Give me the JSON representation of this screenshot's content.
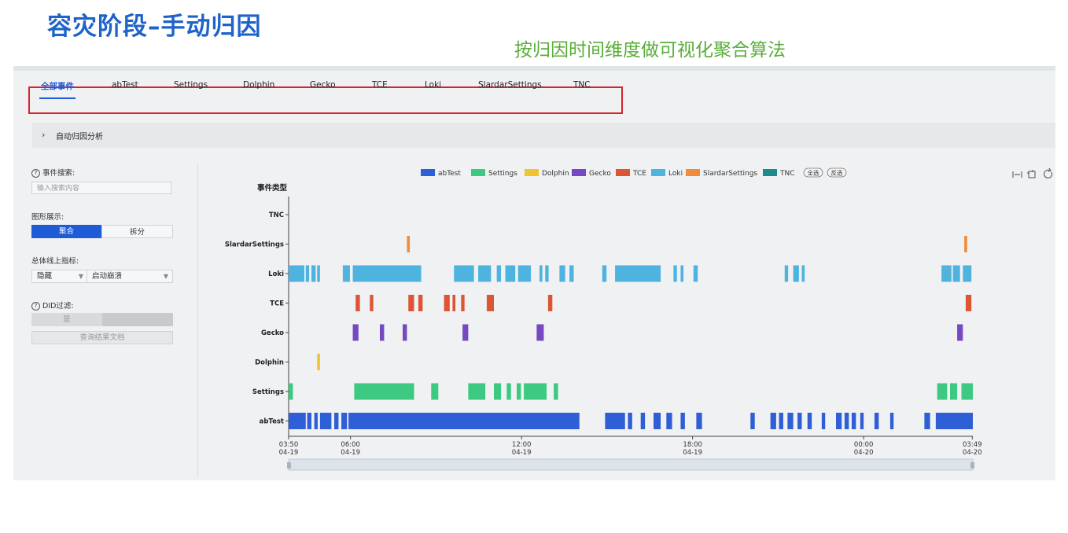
{
  "slide": {
    "title": "容灾阶段–手动归因",
    "note": "按归因时间维度做可视化聚合算法"
  },
  "tabs": [
    "全部事件",
    "abTest",
    "Settings",
    "Dolphin",
    "Gecko",
    "TCE",
    "Loki",
    "SlardarSettings",
    "TNC"
  ],
  "collapse": {
    "label": "自动归因分析"
  },
  "sidebar": {
    "search_label": "事件搜索:",
    "search_placeholder": "输入搜索内容",
    "display_label": "图形展示:",
    "display_options": [
      "聚合",
      "拆分"
    ],
    "metric_label": "总体线上指标:",
    "metric_select1": "隐藏",
    "metric_select2": "启动崩溃",
    "did_label": "DID过滤:",
    "did_options": [
      "是",
      "否"
    ],
    "query_button": "查询结果文档"
  },
  "colors": {
    "abTest": "#2f5fd6",
    "Settings": "#3ec982",
    "Dolphin": "#f0c330",
    "Gecko": "#7649c2",
    "TCE": "#dc5535",
    "Loki": "#4fb3df",
    "SlardarSettings": "#f08a3c",
    "TNC": "#1c8b8b"
  },
  "chart_data": {
    "type": "timeline",
    "legend": [
      "abTest",
      "Settings",
      "Dolphin",
      "Gecko",
      "TCE",
      "Loki",
      "SlardarSettings",
      "TNC"
    ],
    "legend_buttons": [
      "全选",
      "反选"
    ],
    "y_title": "事件类型",
    "categories": [
      "TNC",
      "SlardarSettings",
      "Loki",
      "TCE",
      "Gecko",
      "Dolphin",
      "Settings",
      "abTest"
    ],
    "x_ticks": [
      {
        "time": "03:50",
        "date": "04-19",
        "h": 0
      },
      {
        "time": "06:00",
        "date": "04-19",
        "h": 2.17
      },
      {
        "time": "12:00",
        "date": "04-19",
        "h": 8.17
      },
      {
        "time": "18:00",
        "date": "04-19",
        "h": 14.17
      },
      {
        "time": "00:00",
        "date": "04-20",
        "h": 20.17
      },
      {
        "time": "03:49",
        "date": "04-20",
        "h": 23.98
      }
    ],
    "x_range_hours": [
      0,
      24
    ],
    "events": {
      "TNC": [],
      "SlardarSettings": [
        [
          4.15,
          0.1
        ],
        [
          23.7,
          0.1
        ]
      ],
      "Loki": [
        [
          0,
          0.55
        ],
        [
          0.6,
          0.12
        ],
        [
          0.8,
          0.15
        ],
        [
          1.0,
          0.1
        ],
        [
          1.9,
          0.25
        ],
        [
          2.25,
          2.4
        ],
        [
          5.8,
          0.7
        ],
        [
          6.65,
          0.45
        ],
        [
          7.3,
          0.15
        ],
        [
          7.6,
          0.35
        ],
        [
          8.05,
          0.45
        ],
        [
          8.8,
          0.1
        ],
        [
          9.0,
          0.12
        ],
        [
          9.5,
          0.2
        ],
        [
          9.85,
          0.15
        ],
        [
          11.0,
          0.15
        ],
        [
          11.45,
          1.6
        ],
        [
          13.5,
          0.12
        ],
        [
          13.75,
          0.1
        ],
        [
          14.2,
          0.15
        ],
        [
          17.4,
          0.12
        ],
        [
          17.7,
          0.2
        ],
        [
          18.0,
          0.1
        ],
        [
          22.9,
          0.35
        ],
        [
          23.3,
          0.25
        ],
        [
          23.65,
          0.3
        ]
      ],
      "TCE": [
        [
          2.35,
          0.15
        ],
        [
          2.85,
          0.12
        ],
        [
          4.2,
          0.2
        ],
        [
          4.55,
          0.15
        ],
        [
          5.45,
          0.2
        ],
        [
          5.75,
          0.1
        ],
        [
          6.05,
          0.12
        ],
        [
          6.95,
          0.25
        ],
        [
          9.1,
          0.15
        ],
        [
          23.75,
          0.2
        ]
      ],
      "Gecko": [
        [
          2.25,
          0.2
        ],
        [
          3.2,
          0.15
        ],
        [
          4.0,
          0.15
        ],
        [
          6.1,
          0.2
        ],
        [
          8.7,
          0.25
        ],
        [
          23.45,
          0.2
        ]
      ],
      "Dolphin": [
        [
          1.0,
          0.1
        ]
      ],
      "Settings": [
        [
          0,
          0.15
        ],
        [
          2.3,
          2.1
        ],
        [
          5.0,
          0.25
        ],
        [
          6.3,
          0.6
        ],
        [
          7.2,
          0.25
        ],
        [
          7.65,
          0.15
        ],
        [
          8.0,
          0.15
        ],
        [
          8.25,
          0.8
        ],
        [
          9.3,
          0.15
        ],
        [
          22.75,
          0.35
        ],
        [
          23.2,
          0.25
        ],
        [
          23.6,
          0.4
        ]
      ],
      "abTest": [
        [
          0,
          0.6
        ],
        [
          0.65,
          0.15
        ],
        [
          0.9,
          0.12
        ],
        [
          1.1,
          0.4
        ],
        [
          1.6,
          0.15
        ],
        [
          1.85,
          0.2
        ],
        [
          2.1,
          8.1
        ],
        [
          11.1,
          0.7
        ],
        [
          11.9,
          0.15
        ],
        [
          12.35,
          0.15
        ],
        [
          12.8,
          0.25
        ],
        [
          13.25,
          0.2
        ],
        [
          13.75,
          0.15
        ],
        [
          14.3,
          0.2
        ],
        [
          16.2,
          0.15
        ],
        [
          16.9,
          0.2
        ],
        [
          17.2,
          0.15
        ],
        [
          17.5,
          0.2
        ],
        [
          17.85,
          0.15
        ],
        [
          18.2,
          0.15
        ],
        [
          18.7,
          0.12
        ],
        [
          19.2,
          0.2
        ],
        [
          19.5,
          0.15
        ],
        [
          19.75,
          0.15
        ],
        [
          20.05,
          0.12
        ],
        [
          20.55,
          0.15
        ],
        [
          21.1,
          0.12
        ],
        [
          22.3,
          0.2
        ],
        [
          22.7,
          1.3
        ]
      ]
    }
  }
}
